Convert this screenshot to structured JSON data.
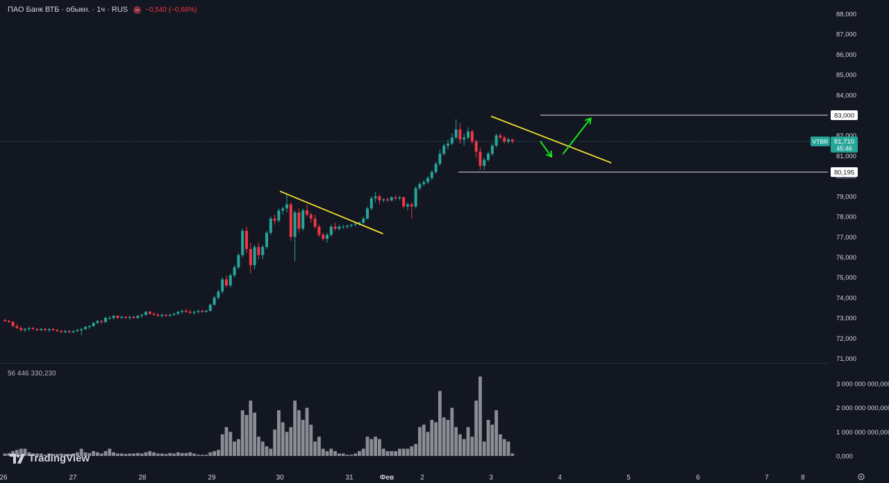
{
  "header": {
    "symbol": "ПАО Банк ВТБ · обыкн. · 1ч · RUS",
    "change": "−0,540 (−0,66%)"
  },
  "volume_label": "56 446 330,230",
  "brand": "TradingView",
  "colors": {
    "bg": "#131722",
    "up": "#26a69a",
    "down": "#f23645",
    "trend": "#f5e12c",
    "arrow": "#19e619",
    "volume": "#8a8d94"
  },
  "chart_data": {
    "type": "candlestick",
    "price_axis": {
      "ticks": [
        "88,000",
        "87,000",
        "86,000",
        "85,000",
        "84,000",
        "83,000",
        "82,000",
        "81,000",
        "80,000",
        "79,000",
        "78,000",
        "77,000",
        "76,000",
        "75,000",
        "74,000",
        "73,000",
        "72,000",
        "71,000"
      ],
      "range": [
        71.0,
        88.0
      ]
    },
    "volume_axis": {
      "ticks": [
        "3 000 000 000,000",
        "2 000 000 000,000",
        "1 000 000 000,000",
        "0,000"
      ],
      "range": [
        0,
        3000000000
      ]
    },
    "time_axis": [
      "26",
      "27",
      "28",
      "29",
      "30",
      "31",
      "Фев",
      "2",
      "3",
      "4",
      "5",
      "6",
      "7",
      "8"
    ],
    "current_price": {
      "symbol": "VTBR",
      "price": "81,710",
      "countdown": "45:46",
      "value": 81.71
    },
    "levels": [
      {
        "label": "83,000",
        "value": 83.0
      },
      {
        "label": "80,195",
        "value": 80.195
      }
    ],
    "trendlines": [
      {
        "from": {
          "time": 30.0,
          "price": 79.25
        },
        "to": {
          "time": 31.9,
          "price": 77.15
        }
      },
      {
        "from": {
          "time": 3.0,
          "price": 82.95
        },
        "to": {
          "time": 4.75,
          "price": 80.65
        }
      }
    ],
    "arrows": [
      {
        "from": {
          "time": 3.72,
          "price": 81.7
        },
        "to": {
          "time": 3.88,
          "price": 80.95
        },
        "direction": "down"
      },
      {
        "from": {
          "time": 4.05,
          "price": 81.1
        },
        "to": {
          "time": 4.45,
          "price": 82.85
        },
        "direction": "up"
      }
    ],
    "candles": [
      [
        72.9,
        72.95,
        72.8,
        72.85,
        0.1
      ],
      [
        72.85,
        72.9,
        72.75,
        72.8,
        0.12
      ],
      [
        72.8,
        72.85,
        72.55,
        72.6,
        0.2
      ],
      [
        72.6,
        72.7,
        72.45,
        72.5,
        0.25
      ],
      [
        72.5,
        72.6,
        72.35,
        72.4,
        0.3
      ],
      [
        72.4,
        72.5,
        72.3,
        72.45,
        0.3
      ],
      [
        72.45,
        72.55,
        72.35,
        72.5,
        0.15
      ],
      [
        72.5,
        72.55,
        72.4,
        72.45,
        0.1
      ],
      [
        72.45,
        72.5,
        72.35,
        72.4,
        0.1
      ],
      [
        72.4,
        72.5,
        72.35,
        72.45,
        0.1
      ],
      [
        72.45,
        72.5,
        72.35,
        72.4,
        0.05
      ],
      [
        72.4,
        72.5,
        72.3,
        72.45,
        0.1
      ],
      [
        72.45,
        72.5,
        72.35,
        72.4,
        0.08
      ],
      [
        72.4,
        72.45,
        72.3,
        72.35,
        0.08
      ],
      [
        72.35,
        72.4,
        72.25,
        72.3,
        0.1
      ],
      [
        72.3,
        72.4,
        72.25,
        72.35,
        0.08
      ],
      [
        72.35,
        72.4,
        72.25,
        72.3,
        0.08
      ],
      [
        72.3,
        72.4,
        72.25,
        72.35,
        0.1
      ],
      [
        72.35,
        72.45,
        72.3,
        72.4,
        0.15
      ],
      [
        72.4,
        72.5,
        72.15,
        72.45,
        0.3
      ],
      [
        72.45,
        72.6,
        72.4,
        72.55,
        0.15
      ],
      [
        72.55,
        72.65,
        72.45,
        72.6,
        0.12
      ],
      [
        72.6,
        72.8,
        72.55,
        72.75,
        0.2
      ],
      [
        72.75,
        72.9,
        72.7,
        72.85,
        0.15
      ],
      [
        72.85,
        72.9,
        72.7,
        72.8,
        0.1
      ],
      [
        72.8,
        73.05,
        72.75,
        73.0,
        0.2
      ],
      [
        73.0,
        73.1,
        72.9,
        73.0,
        0.3
      ],
      [
        73.0,
        73.15,
        72.9,
        73.1,
        0.15
      ],
      [
        73.1,
        73.15,
        72.95,
        73.0,
        0.1
      ],
      [
        73.0,
        73.1,
        72.95,
        73.05,
        0.1
      ],
      [
        73.05,
        73.1,
        72.95,
        73.0,
        0.08
      ],
      [
        73.0,
        73.1,
        72.9,
        73.05,
        0.1
      ],
      [
        73.05,
        73.1,
        72.95,
        73.0,
        0.1
      ],
      [
        73.0,
        73.15,
        72.95,
        73.1,
        0.12
      ],
      [
        73.1,
        73.2,
        73.0,
        73.15,
        0.1
      ],
      [
        73.15,
        73.35,
        73.1,
        73.3,
        0.15
      ],
      [
        73.3,
        73.35,
        73.15,
        73.2,
        0.2
      ],
      [
        73.2,
        73.3,
        73.1,
        73.15,
        0.15
      ],
      [
        73.15,
        73.25,
        73.05,
        73.1,
        0.1
      ],
      [
        73.1,
        73.2,
        73.0,
        73.15,
        0.1
      ],
      [
        73.15,
        73.2,
        73.05,
        73.1,
        0.08
      ],
      [
        73.1,
        73.2,
        73.05,
        73.15,
        0.12
      ],
      [
        73.15,
        73.25,
        73.1,
        73.2,
        0.1
      ],
      [
        73.2,
        73.35,
        73.15,
        73.3,
        0.15
      ],
      [
        73.3,
        73.4,
        73.2,
        73.35,
        0.12
      ],
      [
        73.35,
        73.45,
        73.25,
        73.3,
        0.12
      ],
      [
        73.3,
        73.4,
        73.2,
        73.25,
        0.15
      ],
      [
        73.25,
        73.35,
        73.15,
        73.3,
        0.1
      ],
      [
        73.3,
        73.4,
        73.2,
        73.35,
        0.05
      ],
      [
        73.35,
        73.4,
        73.25,
        73.3,
        0.05
      ],
      [
        73.3,
        73.4,
        73.25,
        73.35,
        0.05
      ],
      [
        73.35,
        73.7,
        73.3,
        73.65,
        0.15
      ],
      [
        73.65,
        74.1,
        73.6,
        74.0,
        0.2
      ],
      [
        74.0,
        74.4,
        73.9,
        74.3,
        0.25
      ],
      [
        74.3,
        75.0,
        74.2,
        74.9,
        0.9
      ],
      [
        74.9,
        75.1,
        74.5,
        74.6,
        1.2
      ],
      [
        74.6,
        75.2,
        74.5,
        75.1,
        1.0
      ],
      [
        75.1,
        75.6,
        75.0,
        75.5,
        0.6
      ],
      [
        75.5,
        76.2,
        75.4,
        76.1,
        0.7
      ],
      [
        76.1,
        77.4,
        76.0,
        77.3,
        1.9
      ],
      [
        77.3,
        77.5,
        76.2,
        76.4,
        1.7
      ],
      [
        76.4,
        76.7,
        75.2,
        75.6,
        2.3
      ],
      [
        75.6,
        76.6,
        75.4,
        76.5,
        1.8
      ],
      [
        76.5,
        76.7,
        75.9,
        76.1,
        0.8
      ],
      [
        76.1,
        76.6,
        75.9,
        76.5,
        0.6
      ],
      [
        76.5,
        77.3,
        76.4,
        77.2,
        0.4
      ],
      [
        77.2,
        78.0,
        77.1,
        77.9,
        0.3
      ],
      [
        77.9,
        78.1,
        77.6,
        77.8,
        1.1
      ],
      [
        77.8,
        78.4,
        77.7,
        78.3,
        1.9
      ],
      [
        78.3,
        78.5,
        78.1,
        78.4,
        1.4
      ],
      [
        78.4,
        79.1,
        78.2,
        78.6,
        1.0
      ],
      [
        78.6,
        78.7,
        76.8,
        77.0,
        1.2
      ],
      [
        77.0,
        78.3,
        75.8,
        78.2,
        2.3
      ],
      [
        78.2,
        78.4,
        77.2,
        77.4,
        1.9
      ],
      [
        77.4,
        78.4,
        77.3,
        78.3,
        1.5
      ],
      [
        78.3,
        78.6,
        78.0,
        78.1,
        2.0
      ],
      [
        78.1,
        78.2,
        77.7,
        77.9,
        1.3
      ],
      [
        77.9,
        78.1,
        77.4,
        77.5,
        0.6
      ],
      [
        77.5,
        77.6,
        77.0,
        77.1,
        0.8
      ],
      [
        77.1,
        77.2,
        76.8,
        76.9,
        0.3
      ],
      [
        76.9,
        77.2,
        76.7,
        77.1,
        0.2
      ],
      [
        77.1,
        77.6,
        77.0,
        77.5,
        0.3
      ],
      [
        77.5,
        77.7,
        77.3,
        77.4,
        0.2
      ],
      [
        77.4,
        77.6,
        77.3,
        77.5,
        0.1
      ],
      [
        77.5,
        77.6,
        77.4,
        77.5,
        0.1
      ],
      [
        77.5,
        77.6,
        77.4,
        77.55,
        0.05
      ],
      [
        77.55,
        77.65,
        77.45,
        77.6,
        0.05
      ],
      [
        77.6,
        77.7,
        77.5,
        77.65,
        0.1
      ],
      [
        77.65,
        77.75,
        77.55,
        77.7,
        0.2
      ],
      [
        77.7,
        78.0,
        77.65,
        77.9,
        0.3
      ],
      [
        77.9,
        78.5,
        77.85,
        78.4,
        0.8
      ],
      [
        78.4,
        79.0,
        78.3,
        78.9,
        0.7
      ],
      [
        78.9,
        79.2,
        78.7,
        79.0,
        0.8
      ],
      [
        79.0,
        79.1,
        78.6,
        78.8,
        0.7
      ],
      [
        78.8,
        78.9,
        78.7,
        78.85,
        0.3
      ],
      [
        78.85,
        78.95,
        78.7,
        78.8,
        0.2
      ],
      [
        78.8,
        79.0,
        78.75,
        78.95,
        0.2
      ],
      [
        78.95,
        79.05,
        78.8,
        78.9,
        0.2
      ],
      [
        78.9,
        79.0,
        78.8,
        78.95,
        0.3
      ],
      [
        78.95,
        79.0,
        78.4,
        78.5,
        0.3
      ],
      [
        78.5,
        78.7,
        78.3,
        78.6,
        0.3
      ],
      [
        78.6,
        78.7,
        77.9,
        78.5,
        0.4
      ],
      [
        78.5,
        79.5,
        78.4,
        79.4,
        0.5
      ],
      [
        79.4,
        79.7,
        79.3,
        79.6,
        1.2
      ],
      [
        79.6,
        79.8,
        79.5,
        79.7,
        1.3
      ],
      [
        79.7,
        80.0,
        79.6,
        79.9,
        1.0
      ],
      [
        79.9,
        80.3,
        79.8,
        80.2,
        1.5
      ],
      [
        80.2,
        80.7,
        80.1,
        80.6,
        1.4
      ],
      [
        80.6,
        81.3,
        80.5,
        81.1,
        2.7
      ],
      [
        81.1,
        81.6,
        81.0,
        81.5,
        1.6
      ],
      [
        81.5,
        81.8,
        81.3,
        81.6,
        1.5
      ],
      [
        81.6,
        82.1,
        81.5,
        81.9,
        2.0
      ],
      [
        81.9,
        82.8,
        81.8,
        82.3,
        1.2
      ],
      [
        82.3,
        82.6,
        81.6,
        81.8,
        0.9
      ],
      [
        81.8,
        82.1,
        81.5,
        81.9,
        0.7
      ],
      [
        81.9,
        82.4,
        81.8,
        82.2,
        1.2
      ],
      [
        82.2,
        82.3,
        81.6,
        81.7,
        0.8
      ],
      [
        81.7,
        81.8,
        80.9,
        81.2,
        2.3
      ],
      [
        81.2,
        81.4,
        80.3,
        80.5,
        3.3
      ],
      [
        80.5,
        80.9,
        80.3,
        80.8,
        0.6
      ],
      [
        80.8,
        81.2,
        80.7,
        81.1,
        1.5
      ],
      [
        81.1,
        81.6,
        81.0,
        81.5,
        1.3
      ],
      [
        81.5,
        82.1,
        81.4,
        82.0,
        1.9
      ],
      [
        82.0,
        82.1,
        81.8,
        81.9,
        0.9
      ],
      [
        81.9,
        82.0,
        81.6,
        81.7,
        0.7
      ],
      [
        81.7,
        81.9,
        81.6,
        81.8,
        0.6
      ],
      [
        81.8,
        81.85,
        81.6,
        81.71,
        0.1
      ]
    ]
  }
}
